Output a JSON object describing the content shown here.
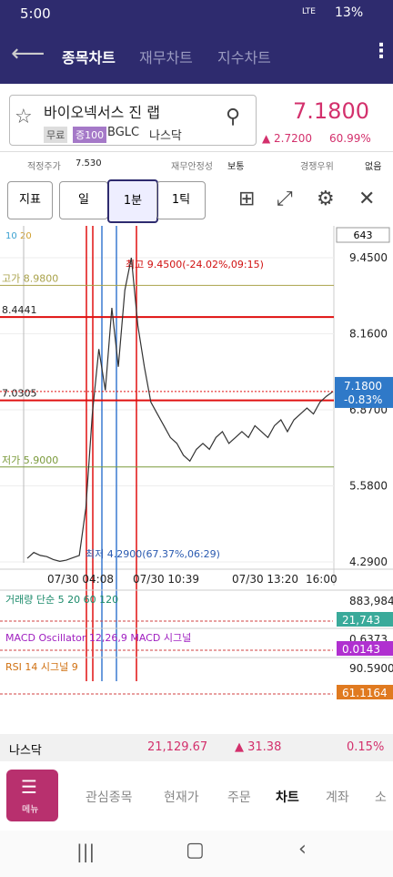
{
  "status_bar": {
    "time": "5:00",
    "network": "LTE",
    "battery": "13%"
  },
  "nav": {
    "tabs": [
      "종목차트",
      "재무차트",
      "지수차트"
    ]
  },
  "stock": {
    "name": "바이오넥서스 진 랩",
    "badges": [
      "무료",
      "증100"
    ],
    "ticker": "BGLC",
    "exchange": "나스닥",
    "price": "7.1800",
    "change": "▲ 2.7200",
    "change_pct": "60.99%"
  },
  "info_row": [
    [
      "적정주가",
      "7.530"
    ],
    [
      "재무안정성",
      "보통"
    ],
    [
      "경쟁우위",
      "없음"
    ]
  ],
  "toolbar": {
    "buttons": [
      "지표",
      "일",
      "1분",
      "1틱"
    ]
  },
  "chart": {
    "ma_legend": [
      "10",
      "20"
    ],
    "count": "643",
    "ylim": [
      4.29,
      9.45
    ],
    "yticks": [
      {
        "value": 9.45,
        "label": "9.4500"
      },
      {
        "value": 8.16,
        "label": "8.1600"
      },
      {
        "value": 6.87,
        "label": "6.8700"
      },
      {
        "value": 5.58,
        "label": "5.5800"
      },
      {
        "value": 4.29,
        "label": "4.2900"
      }
    ],
    "levels": [
      {
        "label": "고가 8.9800",
        "value": 8.98,
        "color": "#a9a24a"
      },
      {
        "label": "8.4441",
        "value": 8.4441,
        "color": "#e01010"
      },
      {
        "label": "7.0305",
        "value": 7.0305,
        "color": "#e01010"
      },
      {
        "label": "저가 5.9000",
        "value": 5.9,
        "color": "#7a9a3a"
      }
    ],
    "high_note": "최고 9.4500(-24.02%,09:15)",
    "low_note": "최저 4.2900(67.37%,06:29)",
    "current": {
      "value": 7.18,
      "label": "7.1800",
      "change": "-0.83%"
    },
    "time_labels": [
      "07/30 04:08",
      "07/30 10:39",
      "07/30 13:20",
      "16:00"
    ],
    "price_series": [
      4.35,
      4.45,
      4.4,
      4.38,
      4.33,
      4.3,
      4.32,
      4.36,
      4.4,
      5.2,
      6.8,
      7.9,
      7.2,
      8.6,
      7.6,
      8.9,
      9.45,
      8.3,
      7.6,
      7.0,
      6.8,
      6.6,
      6.4,
      6.3,
      6.1,
      6.0,
      6.2,
      6.3,
      6.2,
      6.4,
      6.5,
      6.3,
      6.4,
      6.5,
      6.4,
      6.6,
      6.5,
      6.4,
      6.6,
      6.7,
      6.5,
      6.7,
      6.8,
      6.9,
      6.8,
      7.0,
      7.1,
      7.18
    ]
  },
  "indicators": [
    {
      "title": "거래량 단순 5 20 60 120",
      "values": [
        "883,984",
        "21,743"
      ]
    },
    {
      "title": "MACD Oscillator 12,26,9 MACD 시그널",
      "values": [
        "0.6373",
        "0.0143"
      ]
    },
    {
      "title": "RSI 14 시그널 9",
      "values": [
        "90.5900",
        "61.1164"
      ]
    }
  ],
  "market": {
    "name": "나스닥",
    "value": "21,129.67",
    "change": "▲ 31.38",
    "pct": "0.15%"
  },
  "bottom_nav": {
    "menu": "메뉴",
    "items": [
      "관심종목",
      "현재가",
      "주문",
      "차트",
      "계좌",
      "소"
    ]
  }
}
